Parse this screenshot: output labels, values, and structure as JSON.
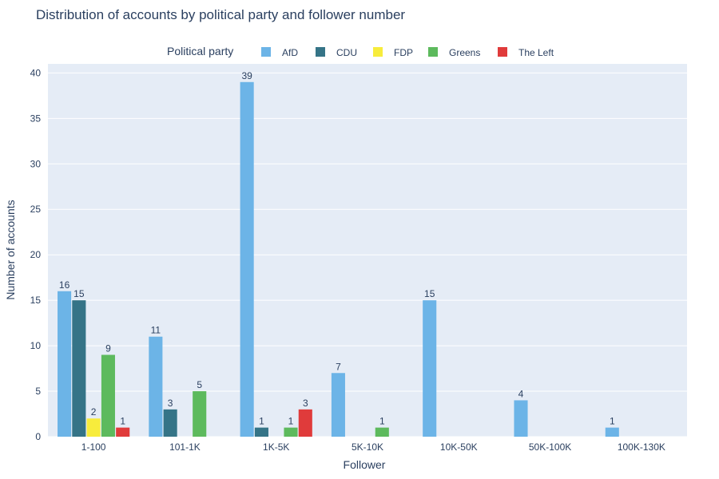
{
  "chart_data": {
    "type": "bar",
    "title": "Distribution of accounts by political party and follower number",
    "xlabel": "Follower",
    "ylabel": "Number of accounts",
    "legend_title": "Political party",
    "legend_position": "top",
    "ylim": [
      0,
      41
    ],
    "yticks": [
      0,
      5,
      10,
      15,
      20,
      25,
      30,
      35,
      40
    ],
    "grid": true,
    "plot_bgcolor": "#e5ecf6",
    "categories": [
      "1-100",
      "101-1K",
      "1K-5K",
      "5K-10K",
      "10K-50K",
      "50K-100K",
      "100K-130K"
    ],
    "series": [
      {
        "name": "AfD",
        "color": "#6cb4e7",
        "values": [
          16,
          11,
          39,
          7,
          15,
          4,
          1
        ]
      },
      {
        "name": "CDU",
        "color": "#357487",
        "values": [
          15,
          3,
          1,
          null,
          null,
          null,
          null
        ]
      },
      {
        "name": "FDP",
        "color": "#f7ec3c",
        "values": [
          2,
          null,
          null,
          null,
          null,
          null,
          null
        ]
      },
      {
        "name": "Greens",
        "color": "#5dba5d",
        "values": [
          9,
          5,
          1,
          1,
          null,
          null,
          null
        ]
      },
      {
        "name": "The Left",
        "color": "#e03b3b",
        "values": [
          1,
          null,
          3,
          null,
          null,
          null,
          null
        ]
      }
    ]
  }
}
